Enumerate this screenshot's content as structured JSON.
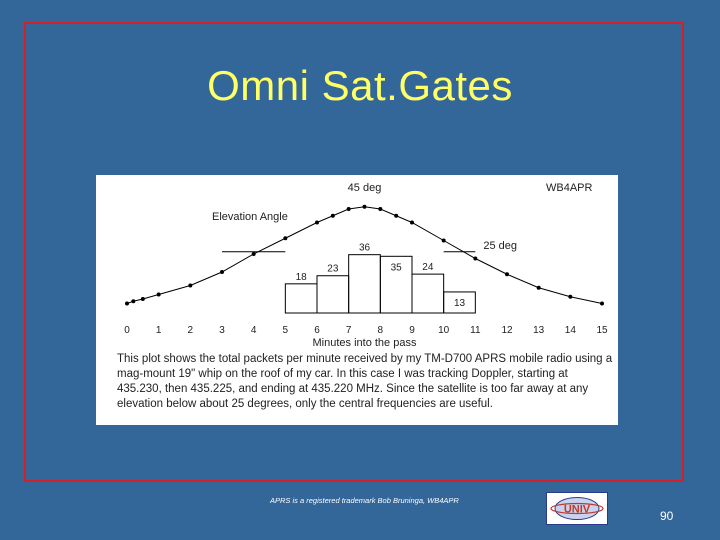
{
  "slide": {
    "title": "Omni Sat.Gates",
    "footer_note": "APRS is a registered trademark Bob Bruninga, WB4APR",
    "page_number": "90",
    "logo_text": "UNIV"
  },
  "colors": {
    "background": "#336699",
    "title": "#ffff66",
    "frame": "#d4202a",
    "curve": "#000000"
  },
  "chart_data": {
    "type": "bar",
    "title": "",
    "xlabel": "Minutes into the pass",
    "ylabel": "",
    "credit": "WB4APR",
    "x_ticks": [
      "0",
      "1",
      "2",
      "3",
      "4",
      "5",
      "6",
      "7",
      "8",
      "9",
      "10",
      "11",
      "12",
      "13",
      "14",
      "15"
    ],
    "bars": [
      {
        "label": "18",
        "x_start": 5,
        "x_end": 6,
        "value": 18
      },
      {
        "label": "23",
        "x_start": 6,
        "x_end": 7,
        "value": 23
      },
      {
        "label": "36",
        "x_start": 7,
        "x_end": 8,
        "value": 36
      },
      {
        "label": "35",
        "x_start": 8,
        "x_end": 9,
        "value": 35
      },
      {
        "label": "24",
        "x_start": 9,
        "x_end": 10,
        "value": 24
      },
      {
        "label": "13",
        "x_start": 10,
        "x_end": 11,
        "value": 13
      }
    ],
    "elevation_curve": {
      "name": "Elevation Angle",
      "x": [
        0,
        0.2,
        0.5,
        1,
        2,
        3,
        4,
        5,
        6,
        6.5,
        7,
        7.5,
        8,
        8.5,
        9,
        10,
        11,
        12,
        13,
        14,
        15
      ],
      "y": [
        2,
        3,
        4,
        6,
        10,
        16,
        24,
        31,
        38,
        41,
        44,
        45,
        44,
        41,
        38,
        30,
        22,
        15,
        9,
        5,
        2
      ],
      "ylim": [
        0,
        48
      ]
    },
    "annotations": [
      {
        "text": "45 deg",
        "x": 7.5
      },
      {
        "text": "25 deg",
        "x": 11
      },
      {
        "text": "Elevation Angle",
        "x": 3.5
      }
    ],
    "threshold": {
      "value": 25,
      "segments": [
        [
          3,
          5
        ],
        [
          10,
          11
        ]
      ]
    },
    "caption": "This plot shows the total packets per minute received by my TM-D700 APRS mobile radio using a mag-mount 19\" whip on the roof of my car. In this case I was tracking Doppler, starting at 435.230, then 435.225, and ending at 435.220 MHz. Since the satellite is too far away at any elevation below about 25 degrees, only the central frequencies are useful."
  }
}
